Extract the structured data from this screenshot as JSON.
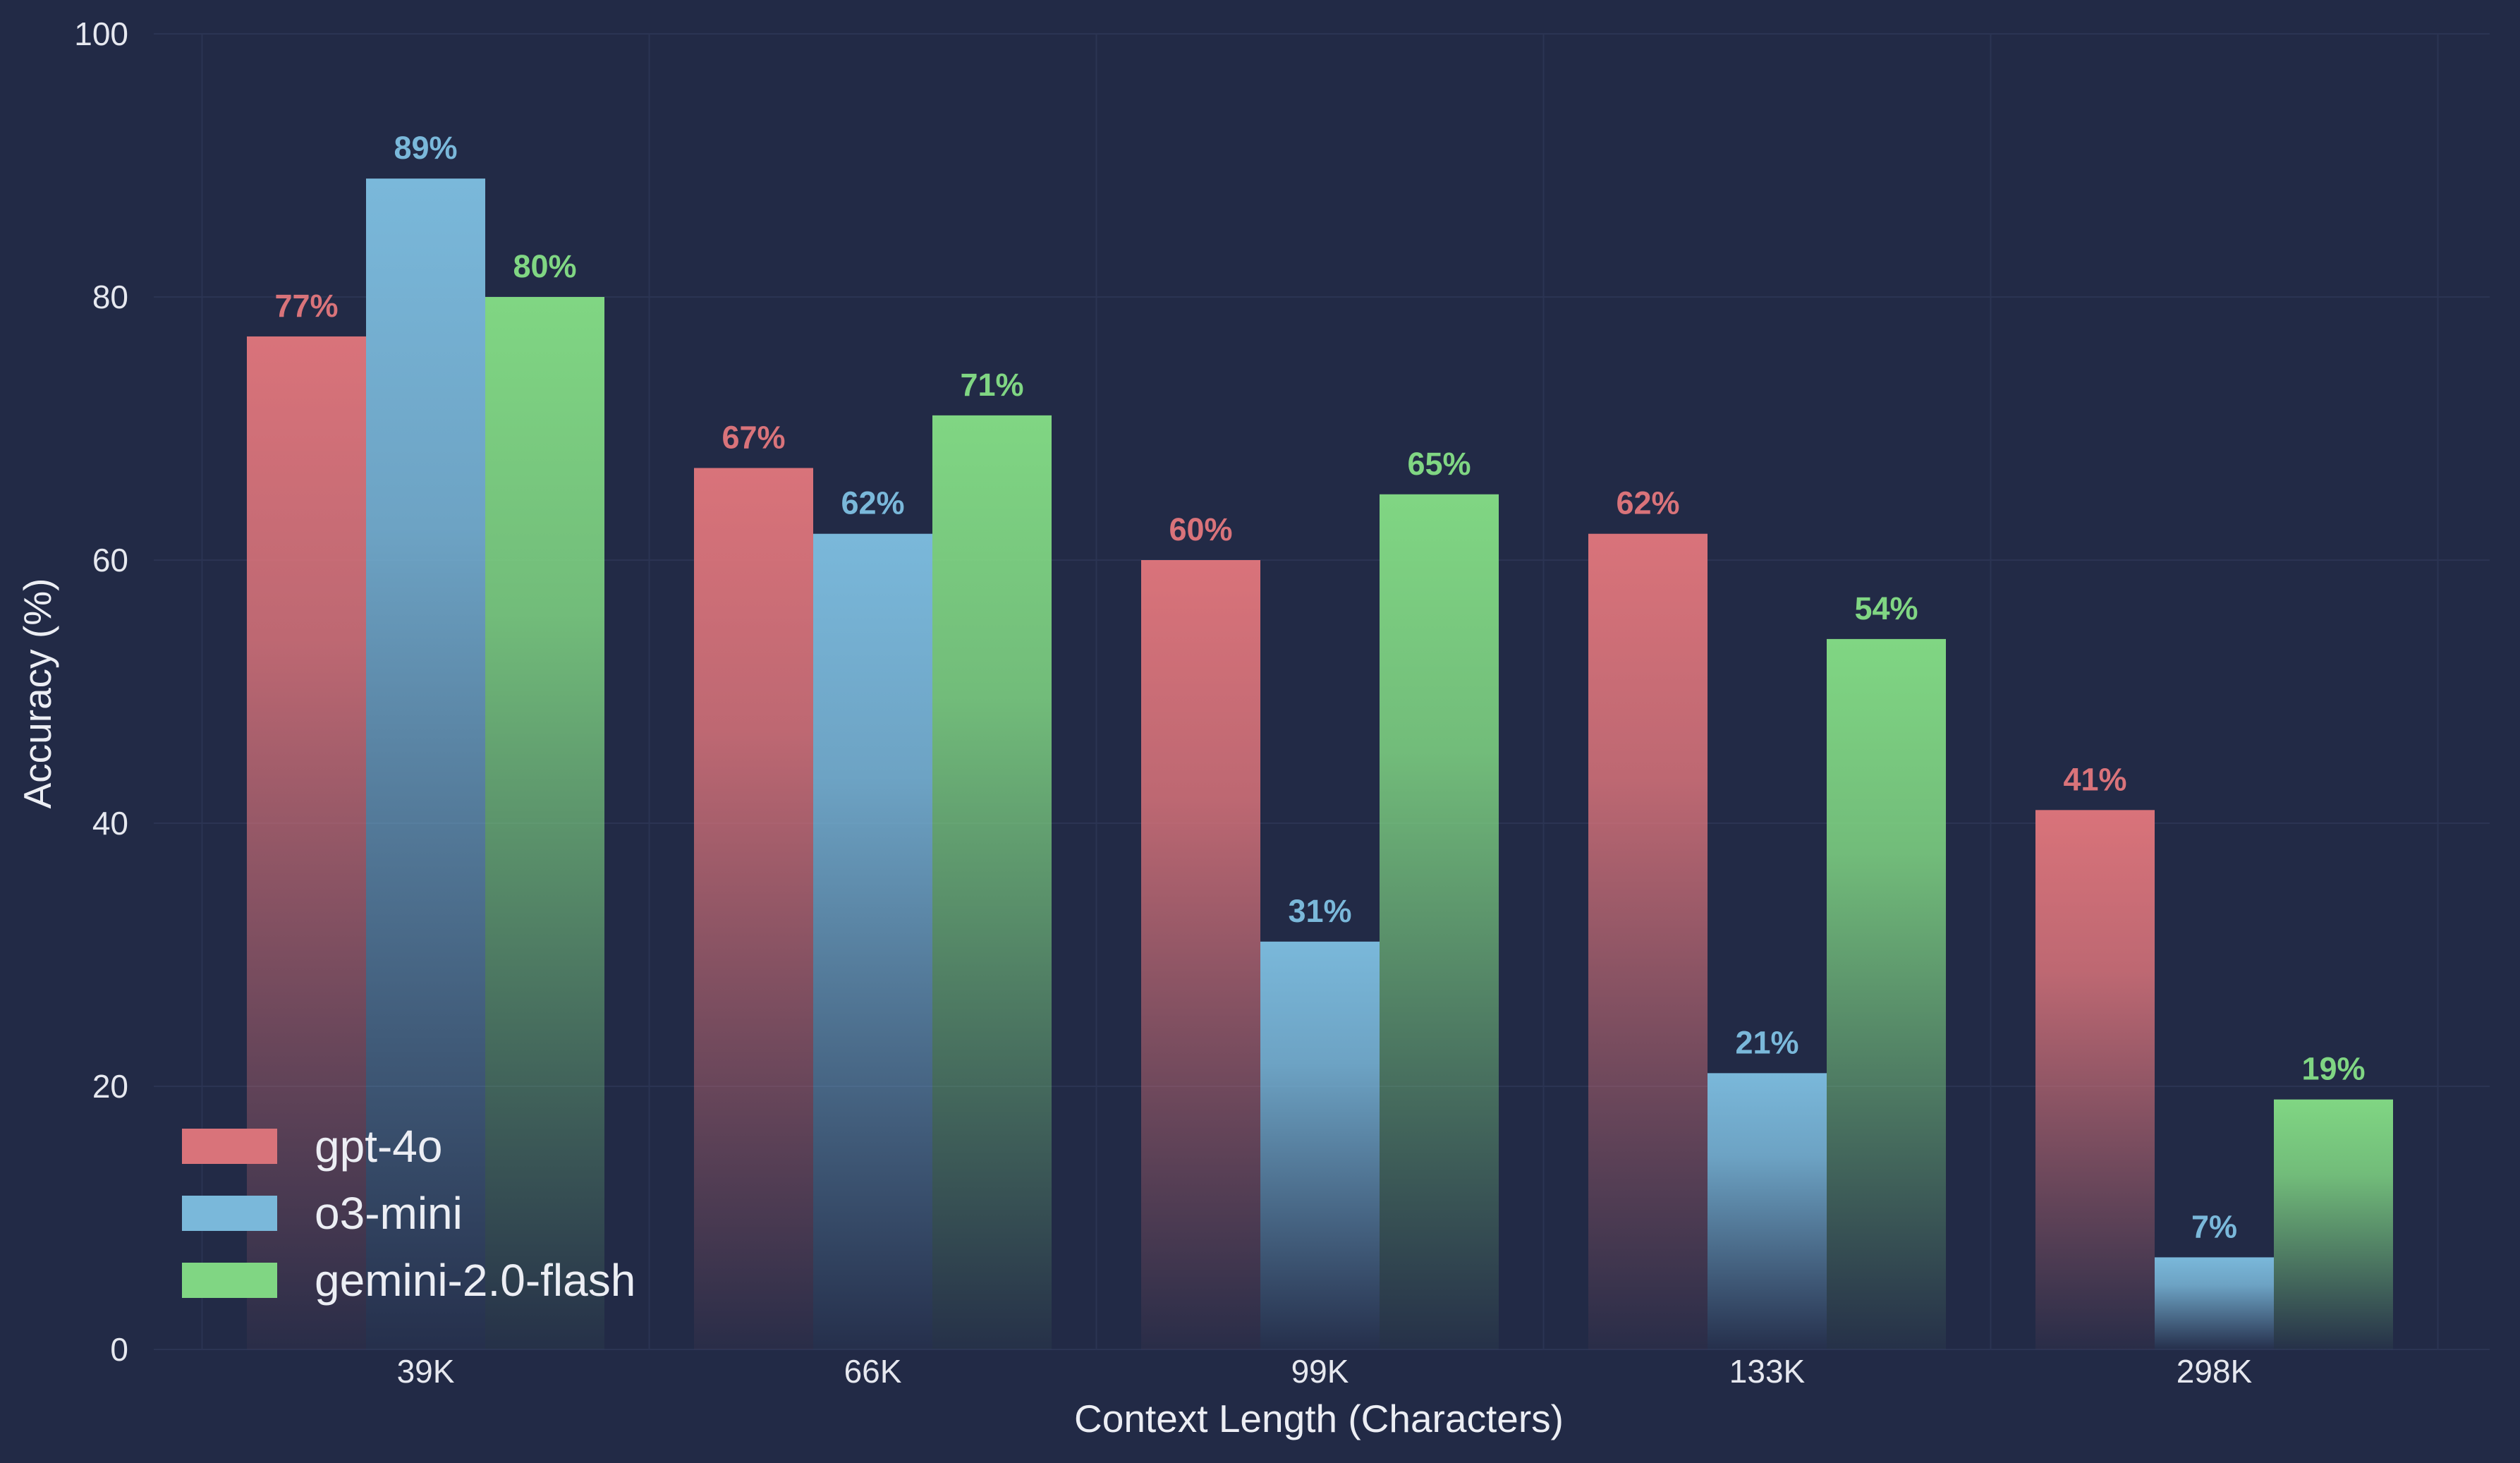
{
  "chart_data": {
    "type": "bar",
    "title": "",
    "xlabel": "Context Length (Characters)",
    "ylabel": "Accuracy (%)",
    "ylim": [
      0,
      100
    ],
    "yticks": [
      0,
      20,
      40,
      60,
      80,
      100
    ],
    "grid": true,
    "legend_position": "bottom-left",
    "categories": [
      "39K",
      "66K",
      "99K",
      "133K",
      "298K"
    ],
    "series": [
      {
        "name": "gpt-4o",
        "color": "#d9737a",
        "values": [
          77,
          67,
          60,
          62,
          41
        ],
        "labels": [
          "77%",
          "67%",
          "60%",
          "62%",
          "41%"
        ]
      },
      {
        "name": "o3-mini",
        "color": "#7ab8da",
        "values": [
          89,
          62,
          31,
          21,
          7
        ],
        "labels": [
          "89%",
          "62%",
          "31%",
          "21%",
          "7%"
        ]
      },
      {
        "name": "gemini-2.0-flash",
        "color": "#80d683",
        "values": [
          80,
          71,
          65,
          54,
          19
        ],
        "labels": [
          "80%",
          "71%",
          "65%",
          "54%",
          "19%"
        ]
      }
    ]
  }
}
